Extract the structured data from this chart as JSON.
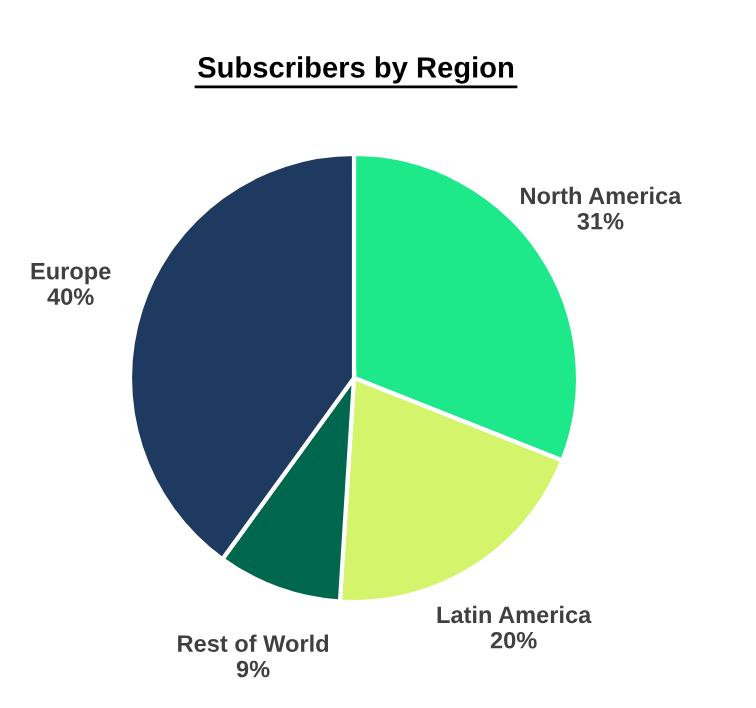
{
  "chart_data": {
    "type": "pie",
    "title": "Subscribers by Region",
    "categories": [
      "North America",
      "Latin America",
      "Rest of World",
      "Europe"
    ],
    "values": [
      31,
      20,
      9,
      40
    ],
    "value_labels": [
      "31%",
      "20%",
      "9%",
      "40%"
    ],
    "colors": [
      "#1de98b",
      "#d3f46b",
      "#00674f",
      "#1f3a60"
    ],
    "legend": false
  }
}
